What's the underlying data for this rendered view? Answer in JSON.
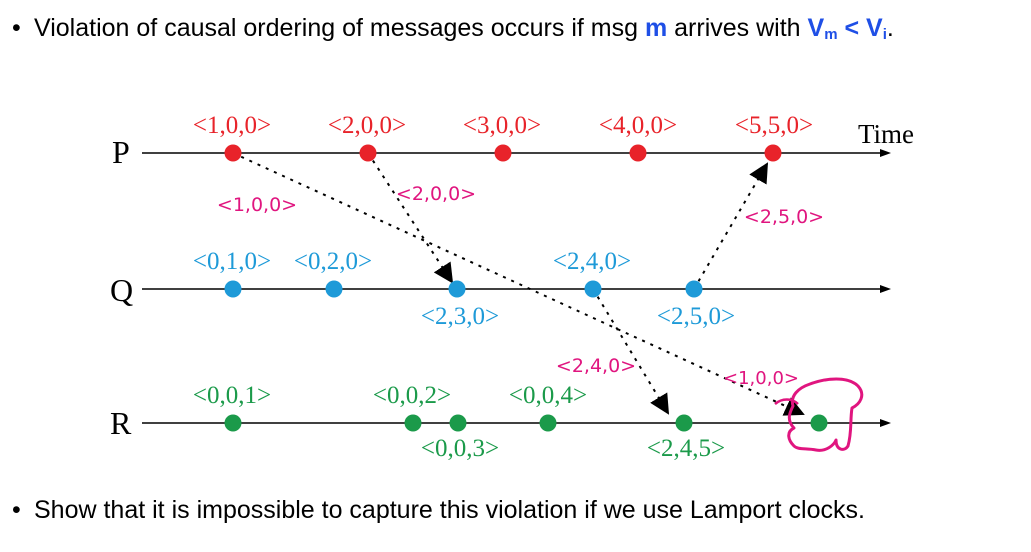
{
  "bullets": {
    "top": {
      "marker": "•",
      "text_before": "Violation of causal ordering of messages occurs if msg ",
      "msg": "m",
      "text_middle": " arrives with ",
      "vm": "V",
      "vm_sub": "m",
      "lt": " < ",
      "vi": "V",
      "vi_sub": "i",
      "period": "."
    },
    "bottom": {
      "marker": "•",
      "text": "Show that it is impossible to capture this violation if we use Lamport clocks."
    }
  },
  "diagram": {
    "time_label": "Time",
    "colors": {
      "P": "#e8232a",
      "Q": "#1e9ad8",
      "R": "#1b9a4a",
      "annotation": "#e0157f"
    },
    "processes": [
      {
        "name": "P",
        "events": [
          "<1,0,0>",
          "<2,0,0>",
          "<3,0,0>",
          "<4,0,0>",
          "<5,5,0>"
        ]
      },
      {
        "name": "Q",
        "events": [
          "<0,1,0>",
          "<0,2,0>",
          "<2,3,0>",
          "<2,4,0>",
          "<2,5,0>"
        ]
      },
      {
        "name": "R",
        "events": [
          "<0,0,1>",
          "<0,0,2>",
          "<0,0,3>",
          "<0,0,4>",
          "<2,4,5>",
          ""
        ]
      }
    ],
    "messages": [
      {
        "from": "P1",
        "to": "R6",
        "label": "<1,0,0>"
      },
      {
        "from": "P2",
        "to": "Q3",
        "label": "<2,0,0>"
      },
      {
        "from": "Q4",
        "to": "R5",
        "label": "<2,4,0>"
      },
      {
        "from": "Q5",
        "to": "P5",
        "label": "<2,5,0>"
      }
    ],
    "handwritten_label": "<1,0,0>"
  }
}
